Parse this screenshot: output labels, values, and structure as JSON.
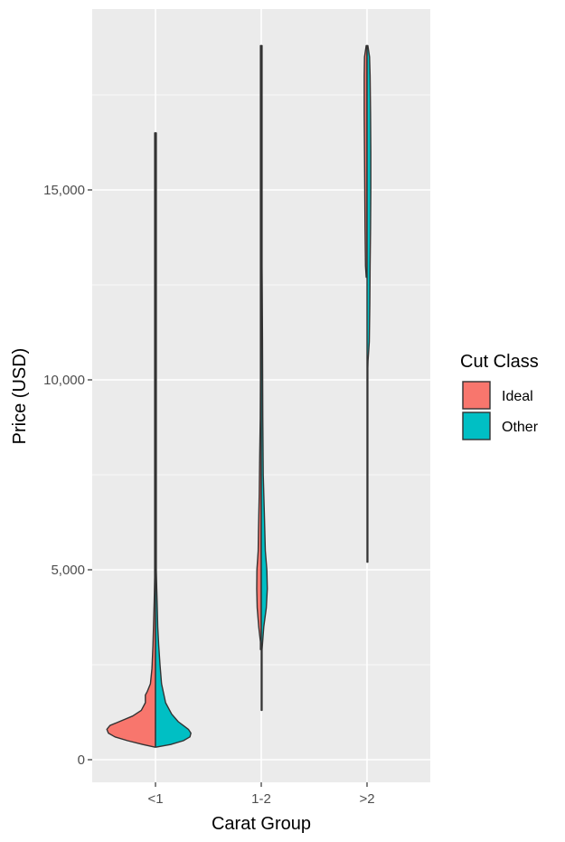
{
  "chart_data": {
    "type": "violin",
    "xlabel": "Carat Group",
    "ylabel": "Price (USD)",
    "categories": [
      "<1",
      "1-2",
      ">2"
    ],
    "ylim": [
      -1200,
      20000
    ],
    "yticks": [
      0,
      5000,
      10000,
      15000
    ],
    "ytick_labels": [
      "0",
      "5,000",
      "10,000",
      "15,000"
    ],
    "grid": true,
    "split": true,
    "legend": {
      "title": "Cut Class",
      "position": "right",
      "entries": [
        {
          "name": "Ideal",
          "color": "#F8766D"
        },
        {
          "name": "Other",
          "color": "#00BFC4"
        }
      ]
    },
    "series": [
      {
        "name": "Ideal",
        "color": "#F8766D",
        "violins": [
          {
            "category": "<1",
            "profile": [
              [
                330,
                0
              ],
              [
                400,
                0.25
              ],
              [
                500,
                0.55
              ],
              [
                600,
                0.8
              ],
              [
                700,
                0.93
              ],
              [
                800,
                0.96
              ],
              [
                900,
                0.9
              ],
              [
                1000,
                0.72
              ],
              [
                1150,
                0.45
              ],
              [
                1300,
                0.28
              ],
              [
                1500,
                0.2
              ],
              [
                1700,
                0.2
              ],
              [
                1800,
                0.16
              ],
              [
                2000,
                0.1
              ],
              [
                2400,
                0.07
              ],
              [
                3000,
                0.05
              ],
              [
                3500,
                0.04
              ],
              [
                4200,
                0.025
              ],
              [
                4800,
                0.015
              ],
              [
                5500,
                0.006
              ],
              [
                7000,
                0.003
              ],
              [
                10000,
                0.002
              ],
              [
                16500,
                0
              ]
            ]
          },
          {
            "category": "1-2",
            "profile": [
              [
                2900,
                0
              ],
              [
                3100,
                0.01
              ],
              [
                3500,
                0.05
              ],
              [
                4000,
                0.08
              ],
              [
                4500,
                0.09
              ],
              [
                5000,
                0.085
              ],
              [
                5500,
                0.06
              ],
              [
                6000,
                0.055
              ],
              [
                7000,
                0.04
              ],
              [
                8000,
                0.03
              ],
              [
                9000,
                0.02
              ],
              [
                10000,
                0.016
              ],
              [
                12000,
                0.008
              ],
              [
                14000,
                0.005
              ],
              [
                16000,
                0.004
              ],
              [
                18000,
                0.002
              ],
              [
                18800,
                0
              ]
            ]
          },
          {
            "category": ">2",
            "profile": [
              [
                12700,
                0
              ],
              [
                13000,
                0.03
              ],
              [
                14000,
                0.04
              ],
              [
                15000,
                0.045
              ],
              [
                16000,
                0.05
              ],
              [
                17000,
                0.055
              ],
              [
                18000,
                0.055
              ],
              [
                18500,
                0.05
              ],
              [
                18800,
                0
              ]
            ]
          }
        ]
      },
      {
        "name": "Other",
        "color": "#00BFC4",
        "violins": [
          {
            "category": "<1",
            "profile": [
              [
                330,
                0
              ],
              [
                400,
                0.3
              ],
              [
                500,
                0.55
              ],
              [
                600,
                0.68
              ],
              [
                700,
                0.7
              ],
              [
                800,
                0.65
              ],
              [
                900,
                0.55
              ],
              [
                1000,
                0.45
              ],
              [
                1200,
                0.32
              ],
              [
                1500,
                0.2
              ],
              [
                2000,
                0.12
              ],
              [
                2500,
                0.09
              ],
              [
                3000,
                0.065
              ],
              [
                3500,
                0.045
              ],
              [
                4000,
                0.035
              ],
              [
                4500,
                0.025
              ],
              [
                5000,
                0.015
              ],
              [
                5400,
                0.006
              ],
              [
                7500,
                0.003
              ],
              [
                10000,
                0.002
              ],
              [
                16500,
                0
              ]
            ]
          },
          {
            "category": "1-2",
            "profile": [
              [
                1300,
                0
              ],
              [
                2000,
                0.001
              ],
              [
                2900,
                0.01
              ],
              [
                3500,
                0.05
              ],
              [
                4000,
                0.1
              ],
              [
                4500,
                0.12
              ],
              [
                5000,
                0.11
              ],
              [
                5500,
                0.08
              ],
              [
                6500,
                0.06
              ],
              [
                7500,
                0.04
              ],
              [
                9000,
                0.03
              ],
              [
                11000,
                0.025
              ],
              [
                12300,
                0.02
              ],
              [
                13000,
                0.005
              ],
              [
                14500,
                0.003
              ],
              [
                16000,
                0.002
              ],
              [
                18800,
                0
              ]
            ]
          },
          {
            "category": ">2",
            "profile": [
              [
                5200,
                0
              ],
              [
                9000,
                0.002
              ],
              [
                10300,
                0.005
              ],
              [
                10500,
                0.02
              ],
              [
                11000,
                0.045
              ],
              [
                12000,
                0.055
              ],
              [
                13000,
                0.06
              ],
              [
                14000,
                0.07
              ],
              [
                15000,
                0.075
              ],
              [
                16000,
                0.075
              ],
              [
                17000,
                0.07
              ],
              [
                18000,
                0.06
              ],
              [
                18500,
                0.05
              ],
              [
                18800,
                0
              ]
            ]
          }
        ]
      }
    ]
  }
}
